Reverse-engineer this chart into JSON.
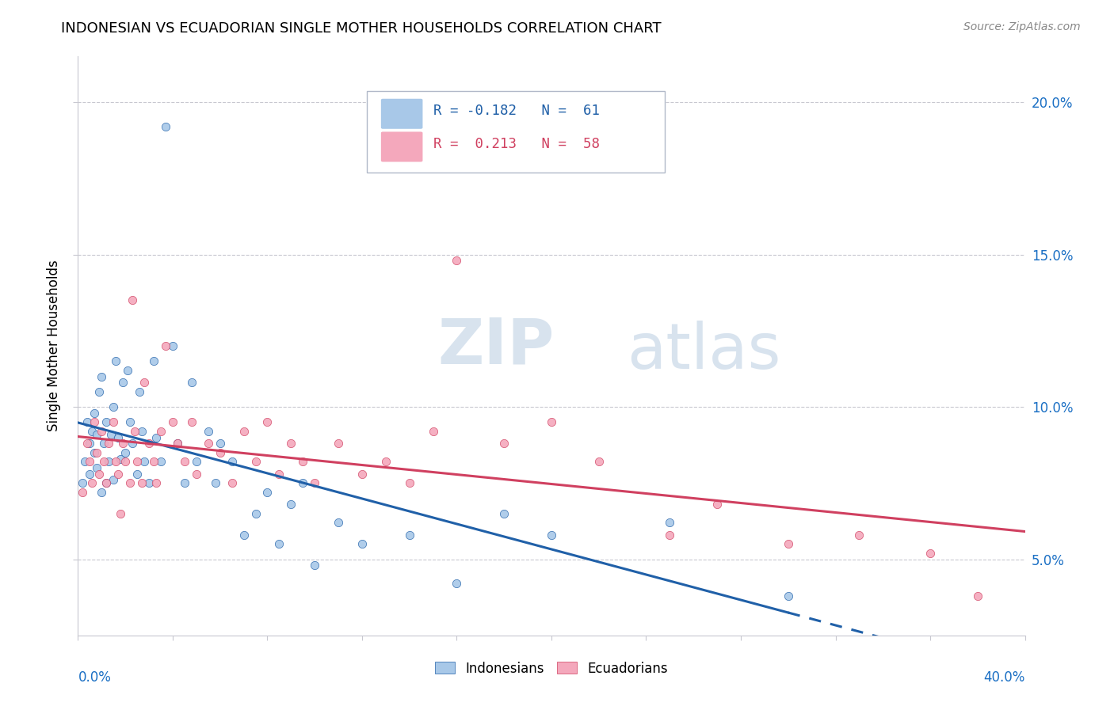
{
  "title": "INDONESIAN VS ECUADORIAN SINGLE MOTHER HOUSEHOLDS CORRELATION CHART",
  "source": "Source: ZipAtlas.com",
  "ylabel": "Single Mother Households",
  "indonesian_color": "#a8c8e8",
  "ecuadorian_color": "#f4a8bc",
  "indonesian_line_color": "#2060a8",
  "ecuadorian_line_color": "#d04060",
  "axis_color": "#1a6fc4",
  "grid_color": "#c8c8d0",
  "watermark_color": "#c8d8e8",
  "xlim": [
    0.0,
    0.4
  ],
  "ylim": [
    0.025,
    0.215
  ],
  "ytick_vals": [
    0.05,
    0.1,
    0.15,
    0.2
  ],
  "ytick_labels": [
    "5.0%",
    "10.0%",
    "15.0%",
    "20.0%"
  ],
  "legend_line1": "R = -0.182   N =  61",
  "legend_line2": "R =  0.213   N =  58",
  "legend_color1": "#2060a8",
  "legend_color2": "#d04060"
}
